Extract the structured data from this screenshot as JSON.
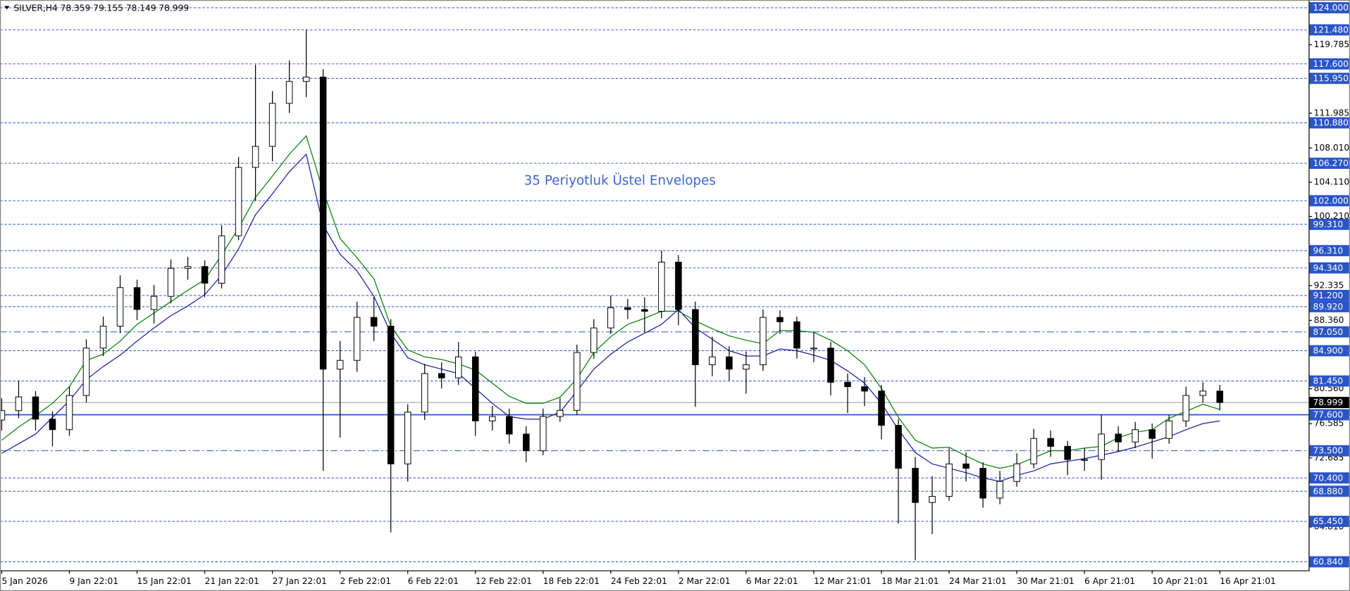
{
  "chart_data": {
    "type": "candlestick",
    "title": "SILVER,H4  78.359 79.155 78.149 78.999",
    "annotation": "35 Periyotluk Üstel Envelopes",
    "categories": [
      "5 Jan 2026",
      null,
      null,
      null,
      "9 Jan 22:01",
      null,
      null,
      null,
      "15 Jan 22:01",
      null,
      null,
      null,
      "21 Jan 22:01",
      null,
      null,
      null,
      "27 Jan 22:01",
      null,
      null,
      null,
      "2 Feb 22:01",
      null,
      null,
      null,
      "6 Feb 22:01",
      null,
      null,
      null,
      "12 Feb 22:01",
      null,
      null,
      null,
      "18 Feb 22:01",
      null,
      null,
      null,
      "24 Feb 22:01",
      null,
      null,
      null,
      "2 Mar 22:01",
      null,
      null,
      null,
      "6 Mar 22:01",
      null,
      null,
      null,
      "12 Mar 21:01",
      null,
      null,
      null,
      "18 Mar 21:01",
      null,
      null,
      null,
      "24 Mar 21:01",
      null,
      null,
      null,
      "30 Mar 21:01",
      null,
      null,
      null,
      "6 Apr 21:01",
      null,
      null,
      null,
      "10 Apr 21:01",
      null,
      null,
      null,
      "16 Apr 21:01"
    ],
    "open": [
      77.0,
      78.07,
      79.64,
      77.1,
      75.9,
      79.8,
      85.2,
      87.7,
      92.1,
      89.6,
      91.1,
      94.3,
      94.5,
      92.6,
      98.0,
      105.8,
      108.2,
      113.1,
      115.6,
      116.1,
      82.8,
      83.8,
      88.7,
      87.7,
      72.0,
      77.9,
      82.3,
      81.8,
      84.2,
      76.9,
      77.4,
      75.4,
      73.5,
      77.4,
      78.1,
      84.7,
      87.5,
      89.8,
      89.6,
      89.4,
      95.0,
      89.6,
      83.3,
      84.2,
      82.8,
      83.3,
      88.7,
      88.2,
      85.2,
      85.2,
      81.3,
      80.8,
      80.3,
      76.4,
      71.5,
      67.6,
      68.3,
      72.0,
      71.5,
      68.1,
      70.0,
      72.0,
      74.9,
      74.0,
      72.5,
      72.5,
      75.4,
      74.5,
      75.9,
      74.9,
      76.9,
      79.8,
      80.3
    ],
    "high": [
      79.5,
      81.5,
      80.3,
      78.0,
      80.8,
      86.2,
      88.8,
      93.5,
      93.0,
      92.4,
      95.3,
      95.6,
      95.2,
      99.2,
      107.0,
      117.5,
      114.5,
      118.0,
      121.5,
      117.0,
      86.0,
      90.5,
      91.0,
      88.5,
      78.8,
      83.4,
      83.6,
      85.9,
      84.8,
      78.6,
      78.3,
      76.3,
      78.3,
      79.5,
      85.6,
      88.5,
      91.2,
      90.8,
      91.0,
      96.3,
      95.8,
      90.5,
      86.5,
      85.4,
      84.8,
      89.6,
      89.5,
      88.8,
      87.0,
      85.9,
      82.3,
      81.9,
      81.0,
      77.1,
      72.8,
      70.6,
      73.8,
      73.3,
      72.2,
      71.2,
      73.2,
      76.0,
      75.8,
      74.6,
      73.8,
      77.6,
      76.3,
      76.8,
      76.6,
      77.6,
      80.8,
      81.3,
      81.0
    ],
    "low": [
      75.8,
      77.2,
      75.8,
      74.0,
      75.2,
      79.0,
      84.3,
      86.9,
      88.4,
      88.0,
      90.3,
      93.0,
      91.0,
      92.0,
      97.5,
      102.0,
      106.5,
      112.0,
      113.8,
      71.2,
      75.0,
      82.5,
      86.0,
      64.2,
      70.0,
      77.0,
      80.6,
      81.0,
      75.2,
      75.8,
      74.3,
      72.2,
      73.0,
      76.8,
      77.6,
      84.0,
      86.8,
      88.5,
      87.0,
      88.6,
      87.8,
      78.5,
      82.0,
      81.5,
      80.0,
      82.6,
      86.8,
      84.0,
      83.6,
      79.8,
      77.8,
      78.6,
      74.8,
      65.2,
      61.0,
      64.0,
      67.8,
      70.0,
      67.0,
      67.4,
      69.4,
      71.5,
      72.8,
      70.7,
      71.2,
      70.2,
      73.4,
      73.8,
      72.6,
      74.3,
      76.2,
      79.0,
      78.1
    ],
    "close": [
      78.07,
      79.64,
      77.1,
      75.9,
      79.8,
      85.2,
      87.7,
      92.1,
      89.6,
      91.1,
      94.3,
      94.5,
      92.6,
      98.0,
      105.8,
      108.2,
      113.1,
      115.6,
      116.1,
      82.8,
      83.8,
      88.7,
      87.7,
      72.0,
      77.9,
      82.3,
      81.8,
      84.2,
      76.9,
      77.4,
      75.4,
      73.5,
      77.4,
      78.1,
      84.7,
      87.5,
      89.8,
      89.6,
      89.4,
      95.0,
      89.6,
      83.3,
      84.2,
      82.8,
      83.3,
      88.7,
      88.2,
      85.2,
      85.2,
      81.3,
      80.8,
      80.3,
      76.4,
      71.5,
      67.6,
      68.3,
      72.0,
      71.5,
      68.1,
      70.0,
      72.0,
      74.9,
      74.0,
      72.5,
      72.5,
      75.4,
      74.5,
      75.9,
      74.9,
      76.9,
      79.8,
      80.3,
      78.999
    ],
    "series": [
      {
        "color": "#008000",
        "values": [
          74.7,
          76.2,
          77.5,
          78.9,
          80.8,
          83.8,
          84.5,
          86.0,
          87.9,
          89.2,
          90.5,
          91.8,
          93.0,
          95.8,
          98.9,
          102.4,
          104.8,
          107.3,
          109.4,
          103.1,
          97.7,
          95.5,
          93.1,
          87.7,
          85.0,
          84.2,
          83.9,
          83.4,
          82.7,
          81.2,
          79.7,
          78.9,
          78.9,
          79.6,
          81.7,
          84.7,
          86.5,
          87.9,
          88.6,
          89.4,
          89.4,
          88.3,
          87.4,
          86.6,
          86.1,
          85.7,
          87.2,
          87.2,
          87.0,
          86.1,
          84.9,
          83.3,
          80.6,
          77.3,
          74.7,
          73.8,
          73.9,
          72.9,
          72.0,
          71.5,
          71.9,
          72.7,
          73.5,
          73.5,
          73.8,
          74.0,
          75.0,
          75.6,
          75.9,
          77.2,
          78.0,
          78.8,
          78.2
        ]
      },
      {
        "color": "#1a1a9e",
        "values": [
          73.2,
          74.3,
          75.4,
          77.3,
          79.2,
          81.6,
          83.1,
          84.4,
          86.0,
          87.5,
          88.9,
          90.0,
          91.3,
          93.5,
          96.5,
          100.4,
          102.8,
          105.3,
          107.3,
          99.2,
          95.9,
          94.0,
          91.1,
          86.9,
          84.1,
          83.3,
          82.8,
          82.3,
          80.6,
          78.9,
          77.4,
          77.1,
          77.1,
          77.9,
          80.3,
          82.8,
          84.5,
          85.9,
          86.9,
          87.9,
          89.6,
          87.5,
          86.2,
          84.9,
          84.3,
          84.3,
          85.1,
          84.9,
          84.4,
          83.8,
          82.6,
          81.2,
          78.9,
          75.9,
          73.3,
          72.0,
          71.5,
          71.0,
          70.4,
          70.0,
          70.7,
          71.2,
          72.0,
          72.3,
          72.6,
          73.0,
          73.4,
          73.9,
          74.5,
          75.1,
          75.9,
          76.6,
          76.9
        ]
      }
    ],
    "candle_colors": {
      "up": "#ffffff",
      "down": "#000000",
      "outline": "#000000"
    },
    "ylim": [
      59.86,
      124.59
    ],
    "yticks": [
      {
        "value": 119.785,
        "label": "119.785"
      },
      {
        "value": 111.985,
        "label": "111.985"
      },
      {
        "value": 108.01,
        "label": "108.010"
      },
      {
        "value": 104.11,
        "label": "104.110"
      },
      {
        "value": 100.21,
        "label": "100.210"
      },
      {
        "value": 92.335,
        "label": "92.335"
      },
      {
        "value": 88.36,
        "label": "88.360"
      },
      {
        "value": 80.56,
        "label": "80.560"
      },
      {
        "value": 76.585,
        "label": "76.585"
      },
      {
        "value": 72.685,
        "label": "72.685"
      },
      {
        "value": 64.81,
        "label": "64.810"
      }
    ],
    "levels": [
      {
        "value": 124.0,
        "label": "124.000",
        "style": "dash"
      },
      {
        "value": 121.48,
        "label": "121.480",
        "style": "dash"
      },
      {
        "value": 117.6,
        "label": "117.600",
        "style": "dash"
      },
      {
        "value": 115.95,
        "label": "115.950",
        "style": "dash"
      },
      {
        "value": 110.88,
        "label": "110.880",
        "style": "dash"
      },
      {
        "value": 106.27,
        "label": "106.270",
        "style": "dash"
      },
      {
        "value": 102.0,
        "label": "102.000",
        "style": "dash"
      },
      {
        "value": 99.31,
        "label": "99.310",
        "style": "dash"
      },
      {
        "value": 96.31,
        "label": "96.310",
        "style": "dash"
      },
      {
        "value": 94.34,
        "label": "94.340",
        "style": "dash"
      },
      {
        "value": 91.2,
        "label": "91.200",
        "style": "dash"
      },
      {
        "value": 89.92,
        "label": "89.920",
        "style": "dash"
      },
      {
        "value": 87.05,
        "label": "87.050",
        "style": "dashdot"
      },
      {
        "value": 84.9,
        "label": "84.900",
        "style": "dash"
      },
      {
        "value": 81.45,
        "label": "81.450",
        "style": "dash"
      },
      {
        "value": 77.6,
        "label": "77.600",
        "style": "solid"
      },
      {
        "value": 73.5,
        "label": "73.500",
        "style": "dashdot"
      },
      {
        "value": 70.4,
        "label": "70.400",
        "style": "dash"
      },
      {
        "value": 68.88,
        "label": "68.880",
        "style": "dash"
      },
      {
        "value": 65.45,
        "label": "65.450",
        "style": "dash"
      },
      {
        "value": 60.84,
        "label": "60.840",
        "style": "dash"
      }
    ],
    "level_color": "#2a55c8",
    "last_price": {
      "value": 78.999,
      "label": "78.999"
    }
  }
}
